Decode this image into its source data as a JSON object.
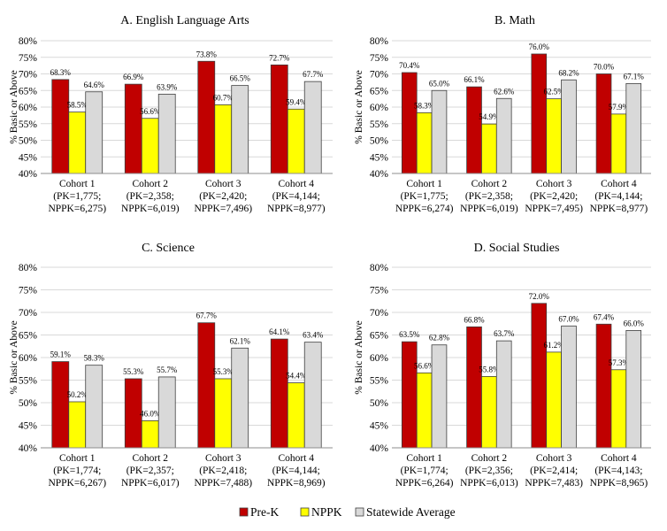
{
  "colors": {
    "prek": "#c00000",
    "nppk": "#ffff00",
    "statewide": "#d9d9d9",
    "grid": "#d9d9d9",
    "bar_stroke": "#3f3f3f"
  },
  "legend": [
    "Pre-K",
    "NPPK",
    "Statewide Average"
  ],
  "chart_data": [
    {
      "type": "bar",
      "title": "A. English Language Arts",
      "ylabel": "% Basic or Above",
      "ylim": [
        40,
        80
      ],
      "yticks": [
        "40%",
        "45%",
        "50%",
        "55%",
        "60%",
        "65%",
        "70%",
        "75%",
        "80%"
      ],
      "categories": [
        [
          "Cohort 1",
          "(PK=1,775;",
          "NPPK=6,275)"
        ],
        [
          "Cohort 2",
          "(PK=2,358;",
          "NPPK=6,019)"
        ],
        [
          "Cohort 3",
          "(PK=2,420;",
          "NPPK=7,496)"
        ],
        [
          "Cohort 4",
          "(PK=4,144;",
          "NPPK=8,977)"
        ]
      ],
      "series": [
        {
          "name": "Pre-K",
          "values": [
            68.3,
            66.9,
            73.8,
            72.7
          ],
          "labels": [
            "68.3%",
            "66.9%",
            "73.8%",
            "72.7%"
          ]
        },
        {
          "name": "NPPK",
          "values": [
            58.5,
            56.6,
            60.7,
            59.4
          ],
          "labels": [
            "58.5%",
            "56.6%",
            "60.7%",
            "59.4%"
          ]
        },
        {
          "name": "Statewide Average",
          "values": [
            64.6,
            63.9,
            66.5,
            67.7
          ],
          "labels": [
            "64.6%",
            "63.9%",
            "66.5%",
            "67.7%"
          ]
        }
      ]
    },
    {
      "type": "bar",
      "title": "B. Math",
      "ylabel": "% Basic or Above",
      "ylim": [
        40,
        80
      ],
      "yticks": [
        "40%",
        "45%",
        "50%",
        "55%",
        "60%",
        "65%",
        "70%",
        "75%",
        "80%"
      ],
      "categories": [
        [
          "Cohort 1",
          "(PK=1,775;",
          "NPPK=6,274)"
        ],
        [
          "Cohort 2",
          "(PK=2,358;",
          "NPPK=6,019)"
        ],
        [
          "Cohort 3",
          "(PK=2,420;",
          "NPPK=7,495)"
        ],
        [
          "Cohort 4",
          "(PK=4,144;",
          "NPPK=8,977)"
        ]
      ],
      "series": [
        {
          "name": "Pre-K",
          "values": [
            70.4,
            66.1,
            76.0,
            70.0
          ],
          "labels": [
            "70.4%",
            "66.1%",
            "76.0%",
            "70.0%"
          ]
        },
        {
          "name": "NPPK",
          "values": [
            58.3,
            54.9,
            62.5,
            57.9
          ],
          "labels": [
            "58.3%",
            "54.9%",
            "62.5%",
            "57.9%"
          ]
        },
        {
          "name": "Statewide Average",
          "values": [
            65.0,
            62.6,
            68.2,
            67.1
          ],
          "labels": [
            "65.0%",
            "62.6%",
            "68.2%",
            "67.1%"
          ]
        }
      ]
    },
    {
      "type": "bar",
      "title": "C. Science",
      "ylabel": "% Basic or Above",
      "ylim": [
        40,
        80
      ],
      "yticks": [
        "40%",
        "45%",
        "50%",
        "55%",
        "60%",
        "65%",
        "70%",
        "75%",
        "80%"
      ],
      "categories": [
        [
          "Cohort 1",
          "(PK=1,774;",
          "NPPK=6,267)"
        ],
        [
          "Cohort 2",
          "(PK=2,357;",
          "NPPK=6,017)"
        ],
        [
          "Cohort 3",
          "(PK=2,418;",
          "NPPK=7,488)"
        ],
        [
          "Cohort 4",
          "(PK=4,144;",
          "NPPK=8,969)"
        ]
      ],
      "series": [
        {
          "name": "Pre-K",
          "values": [
            59.1,
            55.3,
            67.7,
            64.1
          ],
          "labels": [
            "59.1%",
            "55.3%",
            "67.7%",
            "64.1%"
          ]
        },
        {
          "name": "NPPK",
          "values": [
            50.2,
            46.0,
            55.3,
            54.4
          ],
          "labels": [
            "50.2%",
            "46.0%",
            "55.3%",
            "54.4%"
          ]
        },
        {
          "name": "Statewide Average",
          "values": [
            58.3,
            55.7,
            62.1,
            63.4
          ],
          "labels": [
            "58.3%",
            "55.7%",
            "62.1%",
            "63.4%"
          ]
        }
      ]
    },
    {
      "type": "bar",
      "title": "D. Social Studies",
      "ylabel": "% Basic or Above",
      "ylim": [
        40,
        80
      ],
      "yticks": [
        "40%",
        "45%",
        "50%",
        "55%",
        "60%",
        "65%",
        "70%",
        "75%",
        "80%"
      ],
      "categories": [
        [
          "Cohort 1",
          "(PK=1,774;",
          "NPPK=6,264)"
        ],
        [
          "Cohort 2",
          "(PK=2,356;",
          "NPPK=6,013)"
        ],
        [
          "Cohort 3",
          "(PK=2,414;",
          "NPPK=7,483)"
        ],
        [
          "Cohort 4",
          "(PK=4,143;",
          "NPPK=8,965)"
        ]
      ],
      "series": [
        {
          "name": "Pre-K",
          "values": [
            63.5,
            66.8,
            72.0,
            67.4
          ],
          "labels": [
            "63.5%",
            "66.8%",
            "72.0%",
            "67.4%"
          ]
        },
        {
          "name": "NPPK",
          "values": [
            56.6,
            55.8,
            61.2,
            57.3
          ],
          "labels": [
            "56.6%",
            "55.8%",
            "61.2%",
            "57.3%"
          ]
        },
        {
          "name": "Statewide Average",
          "values": [
            62.8,
            63.7,
            67.0,
            66.0
          ],
          "labels": [
            "62.8%",
            "63.7%",
            "67.0%",
            "66.0%"
          ]
        }
      ]
    }
  ]
}
